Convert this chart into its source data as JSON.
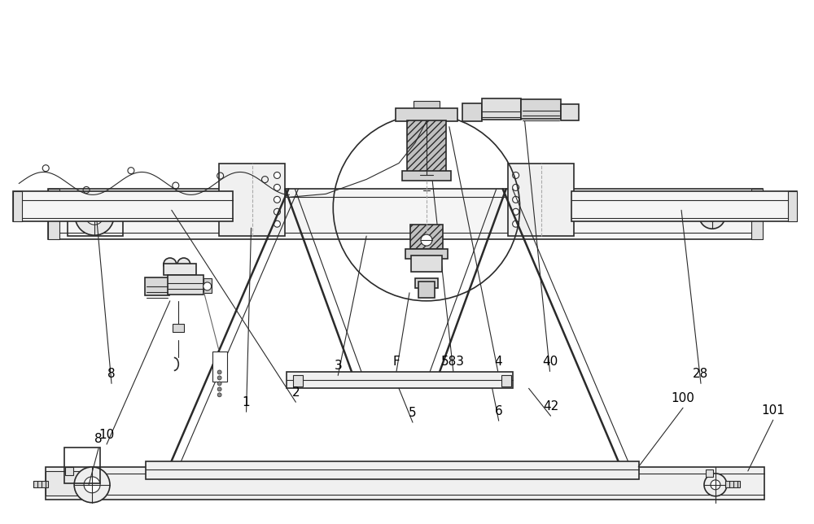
{
  "bg_color": "#ffffff",
  "line_color": "#2a2a2a",
  "fig_width": 10.0,
  "fig_height": 6.44,
  "dpi": 100
}
